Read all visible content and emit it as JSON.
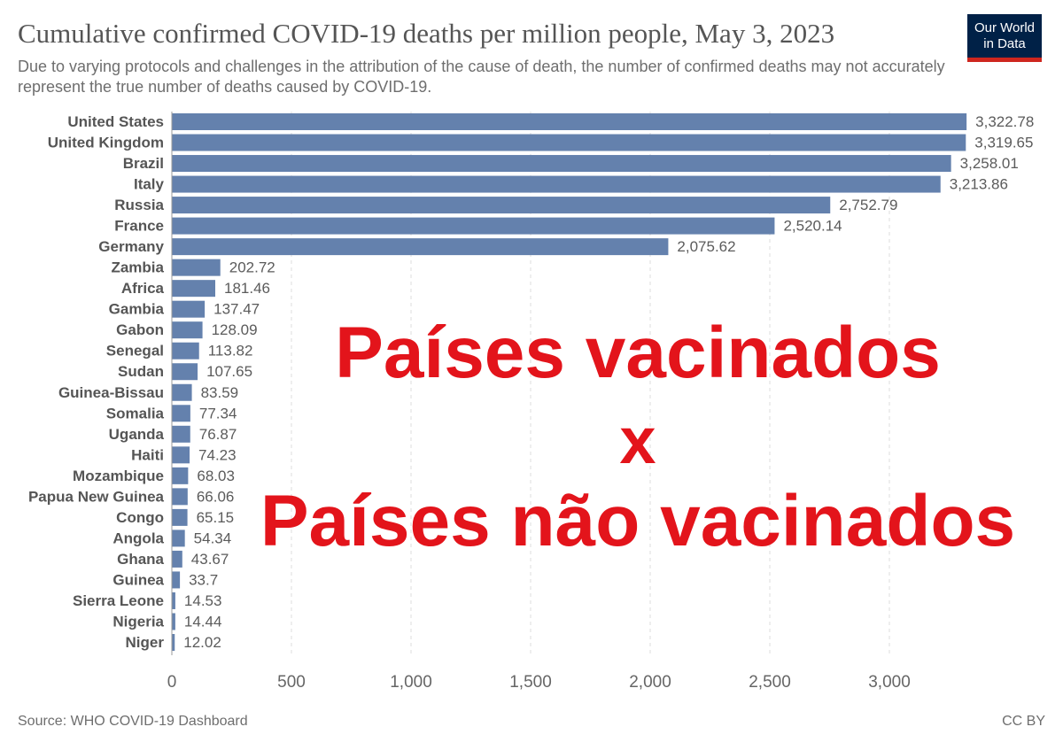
{
  "header": {
    "title": "Cumulative confirmed COVID-19 deaths per million people, May 3, 2023",
    "subtitle": "Due to varying protocols and challenges in the attribution of the cause of death, the number of confirmed deaths may not accurately represent the true number of deaths caused by COVID-19.",
    "logo_line1": "Our World",
    "logo_line2": "in Data"
  },
  "overlay": {
    "line1": "Países vacinados",
    "line2": "x",
    "line3": "Países não vacinados"
  },
  "footer": {
    "source": "Source: WHO COVID-19 Dashboard",
    "license": "CC BY"
  },
  "colors": {
    "bar": "#6481ad",
    "overlay_text": "#e3141b",
    "logo_bg": "#002147",
    "logo_accent": "#ce261e"
  },
  "chart_data": {
    "type": "bar",
    "orientation": "horizontal",
    "title": "Cumulative confirmed COVID-19 deaths per million people, May 3, 2023",
    "categories": [
      "United States",
      "United Kingdom",
      "Brazil",
      "Italy",
      "Russia",
      "France",
      "Germany",
      "Zambia",
      "Africa",
      "Gambia",
      "Gabon",
      "Senegal",
      "Sudan",
      "Guinea-Bissau",
      "Somalia",
      "Uganda",
      "Haiti",
      "Mozambique",
      "Papua New Guinea",
      "Congo",
      "Angola",
      "Ghana",
      "Guinea",
      "Sierra Leone",
      "Nigeria",
      "Niger"
    ],
    "values": [
      3322.78,
      3319.65,
      3258.01,
      3213.86,
      2752.79,
      2520.14,
      2075.62,
      202.72,
      181.46,
      137.47,
      128.09,
      113.82,
      107.65,
      83.59,
      77.34,
      76.87,
      74.23,
      68.03,
      66.06,
      65.15,
      54.34,
      43.67,
      33.7,
      14.53,
      14.44,
      12.02
    ],
    "value_labels": [
      "3,322.78",
      "3,319.65",
      "3,258.01",
      "3,213.86",
      "2,752.79",
      "2,520.14",
      "2,075.62",
      "202.72",
      "181.46",
      "137.47",
      "128.09",
      "113.82",
      "107.65",
      "83.59",
      "77.34",
      "76.87",
      "74.23",
      "68.03",
      "66.06",
      "65.15",
      "54.34",
      "43.67",
      "33.7",
      "14.53",
      "14.44",
      "12.02"
    ],
    "x_ticks": [
      0,
      500,
      1000,
      1500,
      2000,
      2500,
      3000
    ],
    "x_tick_labels": [
      "0",
      "500",
      "1,000",
      "1,500",
      "2,000",
      "2,500",
      "3,000"
    ],
    "xlim": [
      0,
      3200
    ],
    "grid": "vertical dashed"
  }
}
